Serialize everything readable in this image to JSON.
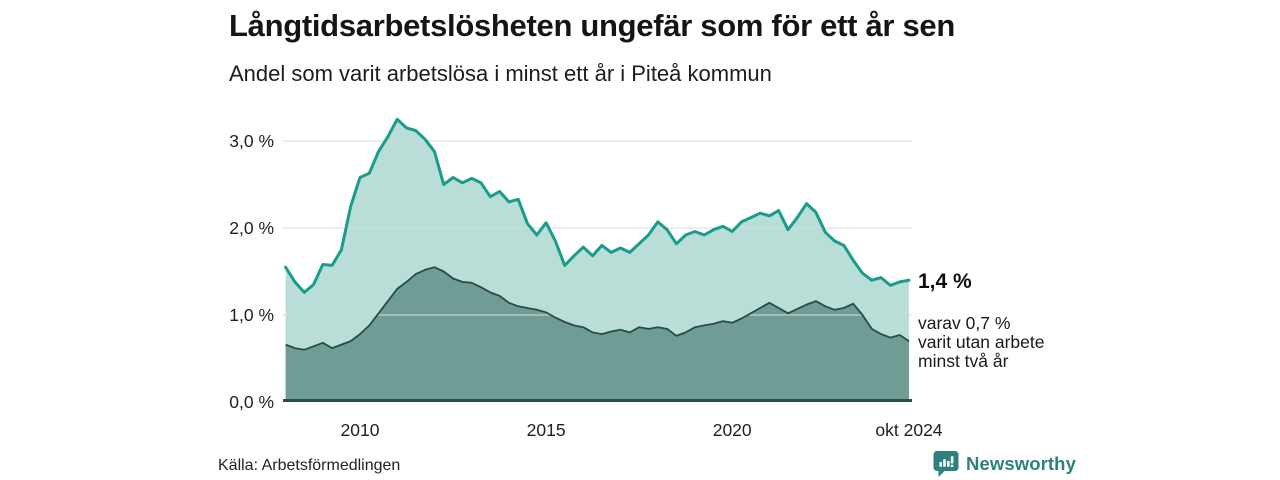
{
  "header": {
    "title": "Långtidsarbetslösheten ungefär som för ett år sen",
    "subtitle": "Andel som varit arbetslösa i minst ett år i Piteå kommun"
  },
  "axes": {
    "y_ticks": [
      {
        "label": "3,0 %",
        "value": 3.0
      },
      {
        "label": "2,0 %",
        "value": 2.0
      },
      {
        "label": "1,0 %",
        "value": 1.0
      },
      {
        "label": "0,0 %",
        "value": 0.0
      }
    ],
    "x_ticks": [
      {
        "label": "2010",
        "t": 2010.0
      },
      {
        "label": "2015",
        "t": 2015.0
      },
      {
        "label": "2020",
        "t": 2020.0
      },
      {
        "label": "okt 2024",
        "t": 2024.75
      }
    ]
  },
  "annotation": {
    "value": "1,4 %",
    "lines": [
      "varav 0,7 %",
      "varit utan arbete",
      "minst två år"
    ]
  },
  "source": {
    "text": "Källa: Arbetsförmedlingen"
  },
  "branding": {
    "name": "Newsworthy"
  },
  "colors": {
    "line1": "#1a9c8b",
    "area1_fill": "#b9ddd7",
    "line2": "#294c46",
    "area2_fill": "#6f9d95",
    "grid": "#d9d9d9",
    "baseline": "#294c46",
    "brand_teal": "#2e807e"
  },
  "chart_data": {
    "type": "area",
    "title": "Långtidsarbetslösheten ungefär som för ett år sen",
    "subtitle": "Andel som varit arbetslösa i minst ett år i Piteå kommun",
    "unit": "%",
    "x_start": 2008.0,
    "x_step": 0.25,
    "x_end": 2024.75,
    "x_note": "decimal years, quarterly estimates read from monthly curve; last point = oktober 2024",
    "ylim": [
      0,
      3.4
    ],
    "grid": true,
    "legend_position": "none",
    "series": [
      {
        "name": "Andel arbetslösa minst ett år",
        "end_label": "1,4 %",
        "values": [
          1.55,
          1.38,
          1.26,
          1.35,
          1.58,
          1.57,
          1.75,
          2.25,
          2.58,
          2.63,
          2.88,
          3.05,
          3.25,
          3.15,
          3.12,
          3.02,
          2.88,
          2.5,
          2.58,
          2.52,
          2.57,
          2.52,
          2.36,
          2.42,
          2.3,
          2.33,
          2.05,
          1.92,
          2.06,
          1.85,
          1.57,
          1.68,
          1.78,
          1.68,
          1.8,
          1.72,
          1.77,
          1.72,
          1.82,
          1.92,
          2.07,
          1.98,
          1.82,
          1.92,
          1.96,
          1.92,
          1.98,
          2.02,
          1.96,
          2.07,
          2.12,
          2.17,
          2.14,
          2.2,
          1.98,
          2.12,
          2.28,
          2.18,
          1.95,
          1.85,
          1.8,
          1.63,
          1.48,
          1.4,
          1.43,
          1.34,
          1.38,
          1.4
        ]
      },
      {
        "name": "varav utan arbete minst två år",
        "end_label": "varav 0,7 % varit utan arbete minst två år",
        "values": [
          0.66,
          0.62,
          0.6,
          0.64,
          0.68,
          0.62,
          0.66,
          0.7,
          0.78,
          0.88,
          1.02,
          1.16,
          1.3,
          1.38,
          1.47,
          1.52,
          1.55,
          1.5,
          1.42,
          1.38,
          1.37,
          1.32,
          1.26,
          1.22,
          1.14,
          1.1,
          1.08,
          1.06,
          1.03,
          0.97,
          0.92,
          0.88,
          0.86,
          0.8,
          0.78,
          0.81,
          0.83,
          0.8,
          0.86,
          0.84,
          0.86,
          0.84,
          0.76,
          0.8,
          0.86,
          0.88,
          0.9,
          0.93,
          0.91,
          0.96,
          1.02,
          1.08,
          1.14,
          1.08,
          1.02,
          1.07,
          1.12,
          1.16,
          1.1,
          1.06,
          1.08,
          1.13,
          1.0,
          0.84,
          0.78,
          0.74,
          0.77,
          0.7
        ]
      }
    ]
  }
}
